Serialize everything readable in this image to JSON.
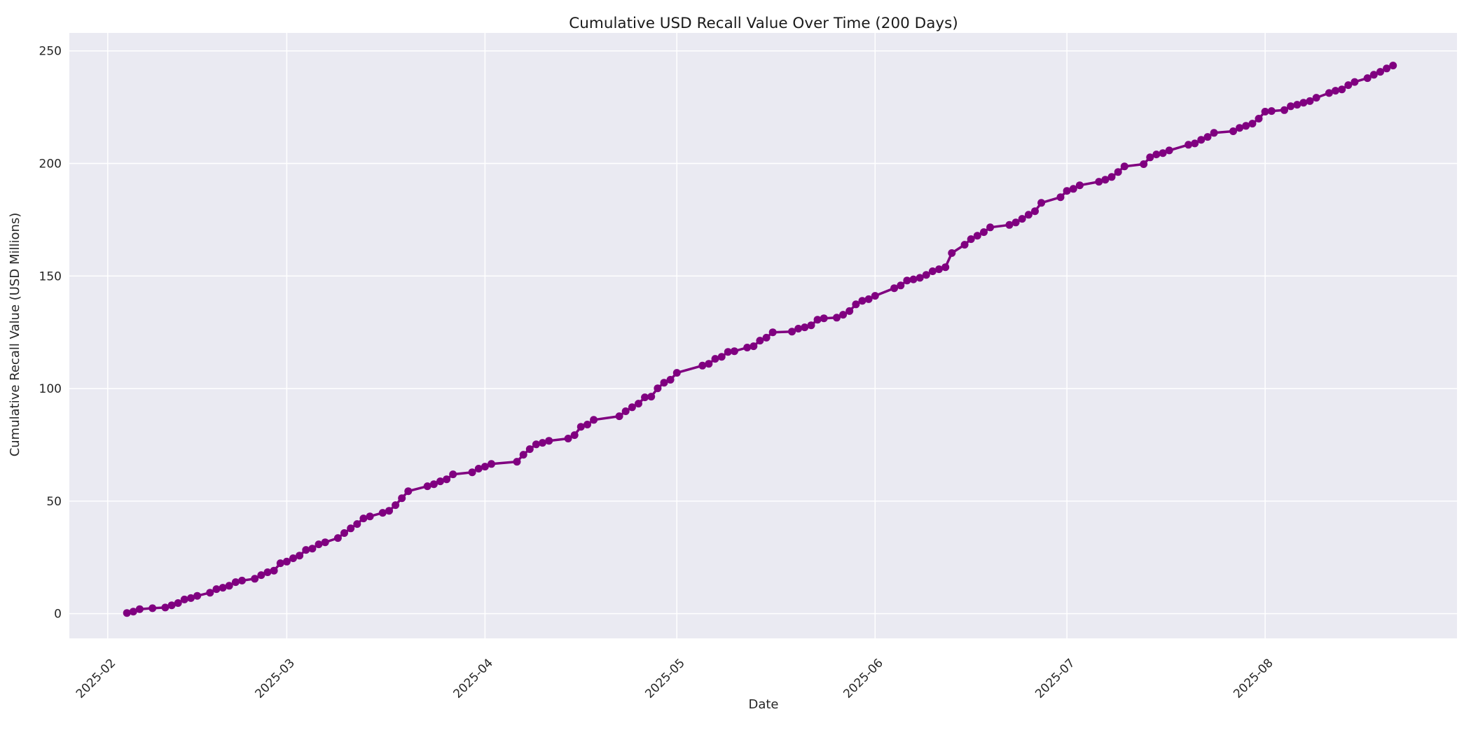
{
  "chart_data": {
    "type": "line",
    "title": "Cumulative USD Recall Value Over Time (200 Days)",
    "xlabel": "Date",
    "ylabel": "Cumulative Recall Value (USD Millions)",
    "legend": "none",
    "grid": true,
    "x_tick_rotation_deg": 45,
    "x_tick_labels": [
      "2025-02",
      "2025-03",
      "2025-04",
      "2025-05",
      "2025-06",
      "2025-07",
      "2025-08"
    ],
    "x_tick_dates": [
      "2025-02-01",
      "2025-03-01",
      "2025-04-01",
      "2025-05-01",
      "2025-06-01",
      "2025-07-01",
      "2025-08-01"
    ],
    "y_ticks": [
      0,
      50,
      100,
      150,
      200,
      250
    ],
    "xlim_dates": [
      "2025-01-26",
      "2025-08-31"
    ],
    "ylim": [
      -11,
      258
    ],
    "colors": {
      "line": "#800080",
      "marker": "#800080",
      "plot_bg": "#eaeaf2",
      "grid": "#ffffff",
      "text": "#262626"
    },
    "series": [
      {
        "dates": [
          "2025-02-04",
          "2025-02-05",
          "2025-02-06",
          "2025-02-08",
          "2025-02-10",
          "2025-02-11",
          "2025-02-12",
          "2025-02-13",
          "2025-02-14",
          "2025-02-15",
          "2025-02-17",
          "2025-02-18",
          "2025-02-19",
          "2025-02-20",
          "2025-02-21",
          "2025-02-22",
          "2025-02-24",
          "2025-02-25",
          "2025-02-26",
          "2025-02-27",
          "2025-02-28",
          "2025-03-01",
          "2025-03-02",
          "2025-03-03",
          "2025-03-04",
          "2025-03-05",
          "2025-03-06",
          "2025-03-07",
          "2025-03-09",
          "2025-03-10",
          "2025-03-11",
          "2025-03-12",
          "2025-03-13",
          "2025-03-14",
          "2025-03-16",
          "2025-03-17",
          "2025-03-18",
          "2025-03-19",
          "2025-03-20",
          "2025-03-23",
          "2025-03-24",
          "2025-03-25",
          "2025-03-26",
          "2025-03-27",
          "2025-03-30",
          "2025-03-31",
          "2025-04-01",
          "2025-04-02",
          "2025-04-06",
          "2025-04-07",
          "2025-04-08",
          "2025-04-09",
          "2025-04-10",
          "2025-04-11",
          "2025-04-14",
          "2025-04-15",
          "2025-04-16",
          "2025-04-17",
          "2025-04-18",
          "2025-04-22",
          "2025-04-23",
          "2025-04-24",
          "2025-04-25",
          "2025-04-26",
          "2025-04-27",
          "2025-04-28",
          "2025-04-29",
          "2025-04-30",
          "2025-05-01",
          "2025-05-05",
          "2025-05-06",
          "2025-05-07",
          "2025-05-08",
          "2025-05-09",
          "2025-05-10",
          "2025-05-12",
          "2025-05-13",
          "2025-05-14",
          "2025-05-15",
          "2025-05-16",
          "2025-05-19",
          "2025-05-20",
          "2025-05-21",
          "2025-05-22",
          "2025-05-23",
          "2025-05-24",
          "2025-05-26",
          "2025-05-27",
          "2025-05-28",
          "2025-05-29",
          "2025-05-30",
          "2025-05-31",
          "2025-06-01",
          "2025-06-04",
          "2025-06-05",
          "2025-06-06",
          "2025-06-07",
          "2025-06-08",
          "2025-06-09",
          "2025-06-10",
          "2025-06-11",
          "2025-06-12",
          "2025-06-13",
          "2025-06-15",
          "2025-06-16",
          "2025-06-17",
          "2025-06-18",
          "2025-06-19",
          "2025-06-22",
          "2025-06-23",
          "2025-06-24",
          "2025-06-25",
          "2025-06-26",
          "2025-06-27",
          "2025-06-30",
          "2025-07-01",
          "2025-07-02",
          "2025-07-03",
          "2025-07-06",
          "2025-07-07",
          "2025-07-08",
          "2025-07-09",
          "2025-07-10",
          "2025-07-13",
          "2025-07-14",
          "2025-07-15",
          "2025-07-16",
          "2025-07-17",
          "2025-07-20",
          "2025-07-21",
          "2025-07-22",
          "2025-07-23",
          "2025-07-24",
          "2025-07-27",
          "2025-07-28",
          "2025-07-29",
          "2025-07-30",
          "2025-07-31",
          "2025-08-01",
          "2025-08-02",
          "2025-08-04",
          "2025-08-05",
          "2025-08-06",
          "2025-08-07",
          "2025-08-08",
          "2025-08-09",
          "2025-08-11",
          "2025-08-12",
          "2025-08-13",
          "2025-08-14",
          "2025-08-15",
          "2025-08-17",
          "2025-08-18",
          "2025-08-19",
          "2025-08-20",
          "2025-08-21"
        ],
        "values": [
          0.3,
          0.9,
          2.0,
          2.4,
          2.7,
          3.7,
          4.7,
          6.3,
          6.9,
          7.9,
          9.3,
          10.9,
          11.5,
          12.4,
          14.0,
          14.7,
          15.5,
          17.1,
          18.4,
          19.1,
          22.4,
          23.1,
          24.6,
          25.8,
          28.3,
          28.9,
          30.8,
          31.7,
          33.6,
          35.8,
          37.9,
          39.8,
          42.3,
          43.2,
          44.8,
          45.7,
          48.2,
          51.3,
          54.4,
          56.6,
          57.5,
          58.8,
          59.7,
          61.9,
          62.8,
          64.4,
          65.3,
          66.5,
          67.5,
          70.6,
          73.1,
          75.2,
          75.9,
          76.8,
          77.8,
          79.3,
          83.0,
          84.0,
          86.1,
          87.7,
          89.9,
          91.7,
          93.3,
          96.1,
          96.4,
          100.1,
          102.6,
          103.9,
          107.0,
          110.2,
          111.0,
          113.2,
          114.1,
          116.3,
          116.6,
          118.2,
          118.8,
          121.3,
          122.6,
          125.0,
          125.3,
          126.6,
          127.2,
          128.1,
          130.6,
          131.2,
          131.5,
          132.8,
          134.4,
          137.4,
          139.0,
          139.7,
          141.2,
          144.6,
          145.8,
          148.0,
          148.5,
          149.2,
          150.5,
          152.1,
          153.0,
          153.9,
          160.2,
          163.9,
          166.4,
          167.9,
          169.5,
          171.6,
          172.7,
          173.8,
          175.4,
          177.2,
          178.8,
          182.5,
          185.0,
          187.8,
          188.7,
          190.3,
          191.9,
          192.8,
          194.0,
          196.2,
          198.7,
          199.7,
          202.7,
          204.0,
          204.6,
          205.8,
          208.3,
          208.9,
          210.5,
          211.8,
          213.6,
          214.3,
          215.8,
          216.7,
          217.7,
          219.9,
          223.0,
          223.3,
          223.7,
          225.4,
          226.1,
          227.0,
          227.7,
          229.2,
          231.3,
          232.3,
          232.9,
          234.8,
          236.2,
          237.9,
          239.4,
          240.7,
          242.2,
          243.5
        ]
      }
    ]
  }
}
